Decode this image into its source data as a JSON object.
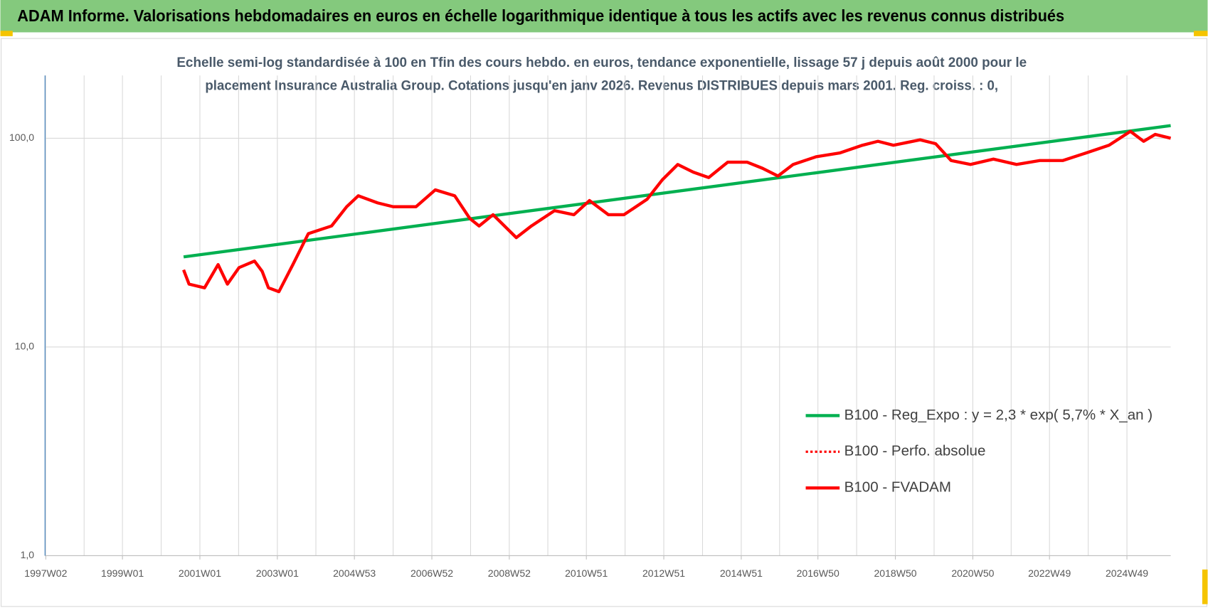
{
  "chart_data": {
    "type": "line",
    "title": "ADAM Informe. Valorisations hebdomadaires en euros en échelle logarithmique identique à tous les actifs avec les revenus connus distribués",
    "subtitle": [
      "Echelle semi-log standardisée à 100 en Tfin des cours hebdo. en euros, tendance exponentielle, lissage 57 j depuis août 2000 pour le",
      "placement Insurance Australia Group. Cotations jusqu'en janv 2026. Revenus DISTRIBUES depuis mars 2001. Reg. croiss. : 0,"
    ],
    "log_scale": true,
    "grid": true,
    "legend": "right",
    "xlim": [
      1997.0,
      2026.07
    ],
    "xticks": [
      {
        "value": 1997.02,
        "label": "1997W02"
      },
      {
        "value": 1999.0,
        "label": "1999W01"
      },
      {
        "value": 2001.0,
        "label": "2001W01"
      },
      {
        "value": 2003.0,
        "label": "2003W01"
      },
      {
        "value": 2004.99,
        "label": "2004W53"
      },
      {
        "value": 2006.99,
        "label": "2006W52"
      },
      {
        "value": 2008.99,
        "label": "2008W52"
      },
      {
        "value": 2010.98,
        "label": "2010W51"
      },
      {
        "value": 2012.98,
        "label": "2012W51"
      },
      {
        "value": 2014.98,
        "label": "2014W51"
      },
      {
        "value": 2016.96,
        "label": "2016W50"
      },
      {
        "value": 2018.96,
        "label": "2018W50"
      },
      {
        "value": 2020.96,
        "label": "2020W50"
      },
      {
        "value": 2022.94,
        "label": "2022W49"
      },
      {
        "value": 2024.94,
        "label": "2024W49"
      }
    ],
    "ylim": [
      1,
      200
    ],
    "yticks": [
      {
        "value": 1,
        "label": "1,0"
      },
      {
        "value": 10,
        "label": "10,0"
      },
      {
        "value": 100,
        "label": "100,0"
      }
    ],
    "series": [
      {
        "name": "B100 - Reg_Expo : y = 2,3 * exp( 5,7% *  X_an )",
        "color": "#00b050",
        "line_style": "solid",
        "x": [
          2000.58,
          2026.07
        ],
        "values": [
          27,
          115
        ]
      },
      {
        "name": "B100 - Perfo. absolue",
        "color": "#ff0000",
        "line_style": "dotted",
        "x": [
          2000.58,
          2000.72,
          2001.12,
          2001.47,
          2001.71,
          2002.01,
          2002.41,
          2002.61,
          2002.77,
          2003.04,
          2003.4,
          2003.8,
          2004.4,
          2004.79,
          2005.09,
          2005.59,
          2005.99,
          2006.58,
          2007.08,
          2007.58,
          2007.97,
          2008.21,
          2008.57,
          2009.17,
          2009.56,
          2010.16,
          2010.66,
          2011.06,
          2011.55,
          2011.95,
          2012.55,
          2012.94,
          2013.34,
          2013.74,
          2014.14,
          2014.63,
          2015.13,
          2015.53,
          2015.93,
          2016.32,
          2016.92,
          2017.52,
          2018.11,
          2018.51,
          2018.91,
          2019.6,
          2020.0,
          2020.4,
          2020.9,
          2021.49,
          2022.09,
          2022.69,
          2023.28,
          2023.88,
          2024.48,
          2025.03,
          2025.37,
          2025.67,
          2026.07
        ],
        "values": [
          23.4,
          20,
          19.2,
          24.8,
          20,
          24,
          25.8,
          23,
          19.2,
          18.4,
          24.8,
          34.9,
          38,
          47,
          53,
          49,
          47,
          47,
          56.6,
          53,
          41.3,
          38,
          43,
          33.4,
          38,
          45,
          43,
          50.3,
          43,
          43,
          51,
          63.2,
          74.9,
          68.8,
          64.8,
          76.8,
          76.8,
          71.8,
          65.9,
          74.9,
          81.6,
          85,
          92.6,
          96.7,
          92.6,
          98.3,
          94.2,
          78.2,
          74.9,
          79.5,
          74.9,
          78.2,
          78.2,
          85,
          92.6,
          107.9,
          96.7,
          104.4,
          100
        ]
      },
      {
        "name": "B100 - FVADAM",
        "color": "#ff0000",
        "line_style": "solid",
        "x": [
          2000.58,
          2000.72,
          2001.12,
          2001.47,
          2001.71,
          2002.01,
          2002.41,
          2002.61,
          2002.77,
          2003.04,
          2003.4,
          2003.8,
          2004.4,
          2004.79,
          2005.09,
          2005.59,
          2005.99,
          2006.58,
          2007.08,
          2007.58,
          2007.97,
          2008.21,
          2008.57,
          2009.17,
          2009.56,
          2010.16,
          2010.66,
          2011.06,
          2011.55,
          2011.95,
          2012.55,
          2012.94,
          2013.34,
          2013.74,
          2014.14,
          2014.63,
          2015.13,
          2015.53,
          2015.93,
          2016.32,
          2016.92,
          2017.52,
          2018.11,
          2018.51,
          2018.91,
          2019.6,
          2020.0,
          2020.4,
          2020.9,
          2021.49,
          2022.09,
          2022.69,
          2023.28,
          2023.88,
          2024.48,
          2025.03,
          2025.37,
          2025.67,
          2026.07
        ],
        "values": [
          23.4,
          20,
          19.2,
          24.8,
          20,
          24,
          25.8,
          23,
          19.2,
          18.4,
          24.8,
          34.9,
          38,
          47,
          53,
          49,
          47,
          47,
          56.6,
          53,
          41.3,
          38,
          43,
          33.4,
          38,
          45,
          43,
          50.3,
          43,
          43,
          51,
          63.2,
          74.9,
          68.8,
          64.8,
          76.8,
          76.8,
          71.8,
          65.9,
          74.9,
          81.6,
          85,
          92.6,
          96.7,
          92.6,
          98.3,
          94.2,
          78.2,
          74.9,
          79.5,
          74.9,
          78.2,
          78.2,
          85,
          92.6,
          107.9,
          96.7,
          104.4,
          100
        ]
      }
    ]
  }
}
